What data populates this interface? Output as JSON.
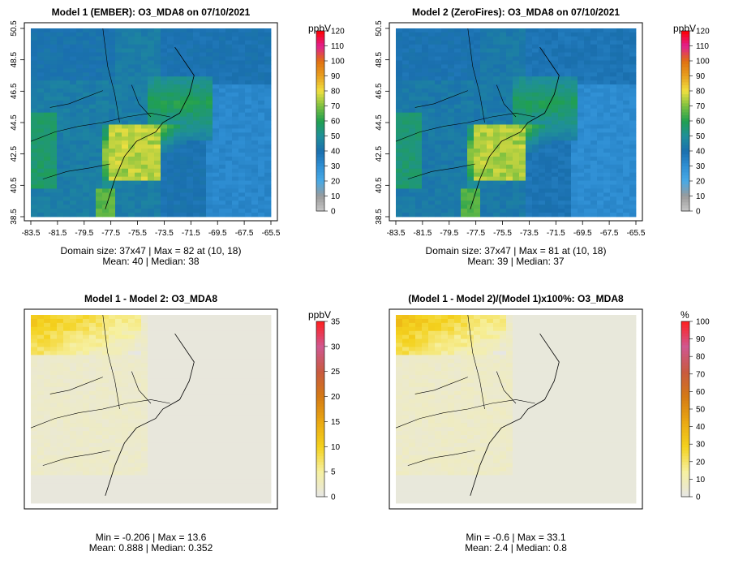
{
  "panels": [
    {
      "id": "p1",
      "title": "Model 1 (EMBER): O3_MDA8 on 07/10/2021",
      "stats_line1": "Domain size: 37x47 | Max = 82 at (10, 18)",
      "stats_line2": "Mean: 40 |  Median: 38",
      "unit": "ppbV",
      "field_type": "conc",
      "colorbar": {
        "min": 0,
        "max": 120,
        "ticks": [
          "0",
          "10",
          "20",
          "30",
          "40",
          "50",
          "60",
          "70",
          "80",
          "90",
          "100",
          "110",
          "120"
        ]
      },
      "x_ticks": [
        "-83.5",
        "-81.5",
        "-79.5",
        "-77.5",
        "-75.5",
        "-73.5",
        "-71.5",
        "-69.5",
        "-67.5",
        "-65.5"
      ],
      "y_ticks": [
        "38.5",
        "40.5",
        "42.5",
        "44.5",
        "46.5",
        "48.5",
        "50.5"
      ]
    },
    {
      "id": "p2",
      "title": "Model 2 (ZeroFires): O3_MDA8 on 07/10/2021",
      "stats_line1": "Domain size: 37x47 | Max = 81 at (10, 18)",
      "stats_line2": "Mean: 39 |  Median: 37",
      "unit": "ppbV",
      "field_type": "conc",
      "colorbar": {
        "min": 0,
        "max": 120,
        "ticks": [
          "0",
          "10",
          "20",
          "30",
          "40",
          "50",
          "60",
          "70",
          "80",
          "90",
          "100",
          "110",
          "120"
        ]
      },
      "x_ticks": [
        "-83.5",
        "-81.5",
        "-79.5",
        "-77.5",
        "-75.5",
        "-73.5",
        "-71.5",
        "-69.5",
        "-67.5",
        "-65.5"
      ],
      "y_ticks": [
        "38.5",
        "40.5",
        "42.5",
        "44.5",
        "46.5",
        "48.5",
        "50.5"
      ]
    },
    {
      "id": "p3",
      "title": "Model 1 - Model 2: O3_MDA8",
      "stats_line1": "Min = -0.206 | Max = 13.6",
      "stats_line2": "Mean: 0.888 |  Median: 0.352",
      "unit": "ppbV",
      "field_type": "diff",
      "colorbar": {
        "min": 0,
        "max": 35,
        "ticks": [
          "0",
          "5",
          "10",
          "15",
          "20",
          "25",
          "30",
          "35"
        ]
      },
      "x_ticks": [],
      "y_ticks": []
    },
    {
      "id": "p4",
      "title": "(Model 1 - Model 2)/(Model 1)x100%: O3_MDA8",
      "stats_line1": "Min = -0.6 | Max = 33.1",
      "stats_line2": "Mean: 2.4 |  Median: 0.8",
      "unit": "%",
      "field_type": "diff",
      "colorbar": {
        "min": 0,
        "max": 100,
        "ticks": [
          "0",
          "10",
          "20",
          "30",
          "40",
          "50",
          "60",
          "70",
          "80",
          "90",
          "100"
        ]
      },
      "x_ticks": [],
      "y_ticks": []
    }
  ],
  "colors": {
    "conc_scale": [
      "#c8c8c8",
      "#9a9a9a",
      "#48aae6",
      "#2f8fd4",
      "#1a6fae",
      "#1f8f9a",
      "#20a050",
      "#7cc040",
      "#f0e040",
      "#e8a020",
      "#e07010",
      "#e02090",
      "#ff0000"
    ],
    "diff_scale": [
      "#e6e6e6",
      "#f6f0a0",
      "#f4d21e",
      "#eaa812",
      "#d47a14",
      "#c85a40",
      "#d05890",
      "#ff2020"
    ]
  }
}
